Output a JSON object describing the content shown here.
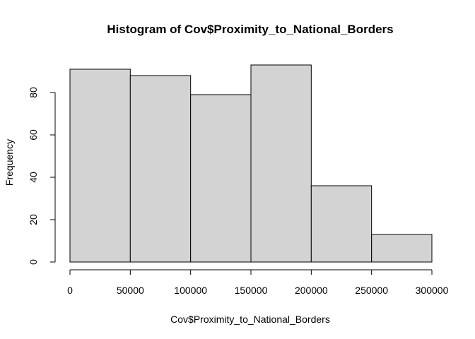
{
  "chart_data": {
    "type": "bar",
    "title": "Histogram of Cov$Proximity_to_National_Borders",
    "xlabel": "Cov$Proximity_to_National_Borders",
    "ylabel": "Frequency",
    "bins": [
      {
        "start": 0,
        "end": 50000,
        "count": 91
      },
      {
        "start": 50000,
        "end": 100000,
        "count": 88
      },
      {
        "start": 100000,
        "end": 150000,
        "count": 79
      },
      {
        "start": 150000,
        "end": 200000,
        "count": 93
      },
      {
        "start": 200000,
        "end": 250000,
        "count": 36
      },
      {
        "start": 250000,
        "end": 300000,
        "count": 13
      }
    ],
    "xlim": [
      0,
      300000
    ],
    "ylim": [
      0,
      95
    ],
    "xticks": [
      0,
      50000,
      100000,
      150000,
      200000,
      250000,
      300000
    ],
    "xtick_labels": [
      "0",
      "50000",
      "100000",
      "150000",
      "200000",
      "250000",
      "300000"
    ],
    "yticks": [
      0,
      20,
      40,
      60,
      80
    ],
    "ytick_labels": [
      "0",
      "20",
      "40",
      "60",
      "80"
    ],
    "bar_color": "#d3d3d3",
    "edge_color": "#000000",
    "grid": false
  }
}
